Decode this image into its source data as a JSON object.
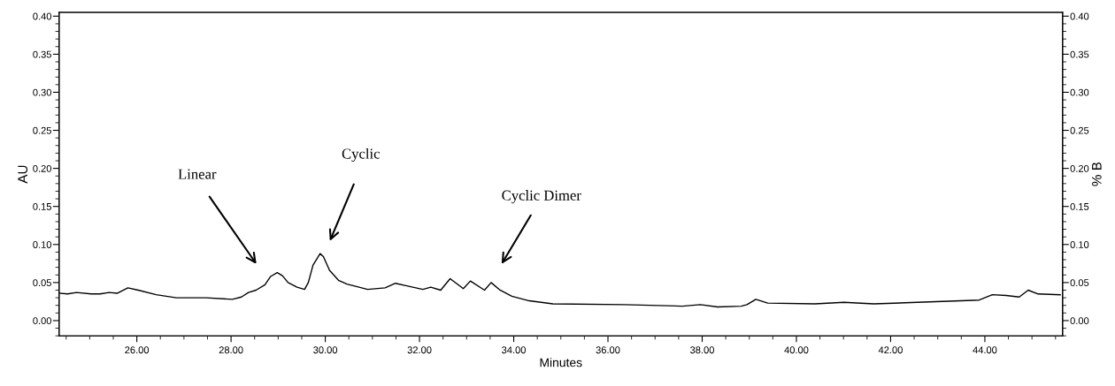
{
  "chart_data": {
    "type": "line",
    "xlabel": "Minutes",
    "ylabel": "AU",
    "y2label": "% B",
    "xlim": [
      24.35,
      45.65
    ],
    "ylim": [
      -0.02,
      0.405
    ],
    "y2lim": [
      -0.02,
      0.405
    ],
    "xticks": [
      {
        "value": 26,
        "label": "26.00"
      },
      {
        "value": 28,
        "label": "28.00"
      },
      {
        "value": 30,
        "label": "30.00"
      },
      {
        "value": 32,
        "label": "32.00"
      },
      {
        "value": 34,
        "label": "34.00"
      },
      {
        "value": 36,
        "label": "36.00"
      },
      {
        "value": 38,
        "label": "38.00"
      },
      {
        "value": 40,
        "label": "40.00"
      },
      {
        "value": 42,
        "label": "42.00"
      },
      {
        "value": 44,
        "label": "44.00"
      }
    ],
    "yticks": [
      {
        "value": 0,
        "label": "0.00"
      },
      {
        "value": 0.05,
        "label": "0.05"
      },
      {
        "value": 0.1,
        "label": "0.10"
      },
      {
        "value": 0.15,
        "label": "0.15"
      },
      {
        "value": 0.2,
        "label": "0.20"
      },
      {
        "value": 0.25,
        "label": "0.25"
      },
      {
        "value": 0.3,
        "label": "0.30"
      },
      {
        "value": 0.35,
        "label": "0.35"
      },
      {
        "value": 0.4,
        "label": "0.40"
      }
    ],
    "y2ticks": [
      {
        "value": 0,
        "label": "0.00"
      },
      {
        "value": 0.05,
        "label": "0.05"
      },
      {
        "value": 0.1,
        "label": "0.10"
      },
      {
        "value": 0.15,
        "label": "0.15"
      },
      {
        "value": 0.2,
        "label": "0.20"
      },
      {
        "value": 0.25,
        "label": "0.25"
      },
      {
        "value": 0.3,
        "label": "0.30"
      },
      {
        "value": 0.35,
        "label": "0.35"
      },
      {
        "value": 0.4,
        "label": "0.40"
      }
    ],
    "grid": false,
    "marker": "none",
    "line_style": "solid",
    "series": [
      {
        "color": "#000000",
        "x": [
          24.35,
          24.53,
          24.72,
          25.03,
          25.22,
          25.41,
          25.59,
          25.81,
          26.03,
          26.41,
          26.84,
          27.47,
          28.03,
          28.22,
          28.37,
          28.53,
          28.72,
          28.84,
          28.98,
          29.09,
          29.21,
          29.4,
          29.56,
          29.64,
          29.74,
          29.89,
          29.96,
          30.09,
          30.28,
          30.46,
          30.9,
          31.27,
          31.49,
          31.71,
          32.07,
          32.24,
          32.45,
          32.65,
          32.93,
          33.08,
          33.38,
          33.52,
          33.71,
          33.96,
          34.33,
          34.83,
          36.33,
          37.58,
          37.96,
          38.33,
          38.83,
          38.95,
          39.14,
          39.39,
          40.39,
          41.01,
          41.64,
          42.57,
          43.88,
          44.16,
          44.45,
          44.73,
          44.92,
          45.13,
          45.6
        ],
        "values": [
          0.036,
          0.035,
          0.037,
          0.035,
          0.035,
          0.037,
          0.036,
          0.043,
          0.04,
          0.034,
          0.03,
          0.03,
          0.028,
          0.031,
          0.037,
          0.04,
          0.047,
          0.058,
          0.063,
          0.059,
          0.05,
          0.044,
          0.041,
          0.05,
          0.073,
          0.088,
          0.084,
          0.066,
          0.053,
          0.048,
          0.041,
          0.043,
          0.049,
          0.046,
          0.041,
          0.044,
          0.04,
          0.055,
          0.042,
          0.052,
          0.04,
          0.05,
          0.04,
          0.032,
          0.026,
          0.022,
          0.021,
          0.019,
          0.021,
          0.018,
          0.019,
          0.021,
          0.028,
          0.023,
          0.022,
          0.024,
          0.022,
          0.024,
          0.027,
          0.034,
          0.033,
          0.031,
          0.04,
          0.035,
          0.034
        ]
      }
    ],
    "annotations": [
      "Linear",
      "Cyclic",
      "Cyclic Dimer"
    ]
  }
}
